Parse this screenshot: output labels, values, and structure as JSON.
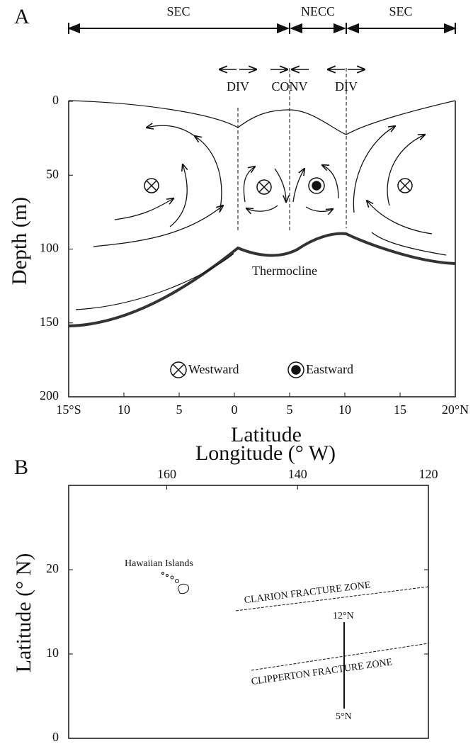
{
  "chart_data": [
    {
      "type": "section",
      "label": "A",
      "xlabel": "Latitude",
      "ylabel": "Depth (m)",
      "xlim": [
        -15,
        20
      ],
      "xticks": [
        {
          "value": -15,
          "label": "15°S"
        },
        {
          "value": -10,
          "label": "10"
        },
        {
          "value": -5,
          "label": "5"
        },
        0,
        5,
        10,
        15,
        {
          "value": 20,
          "label": "20°N"
        }
      ],
      "ylim": [
        200,
        0
      ],
      "yticks": [
        0,
        50,
        100,
        150,
        200
      ],
      "currents": [
        "SEC",
        "NECC",
        "SEC"
      ],
      "fronts": [
        "DIV",
        "CONV",
        "DIV"
      ],
      "annotation": "Thermocline",
      "legend": [
        "Westward",
        "Eastward"
      ]
    },
    {
      "type": "map",
      "label": "B",
      "xlabel": "Longitude (° W)",
      "ylabel": "Latitude (° N)",
      "xlim": [
        175,
        120
      ],
      "xticks": [
        160,
        140,
        120
      ],
      "ylim": [
        0,
        30
      ],
      "yticks": [
        0,
        10,
        20
      ],
      "annotations": [
        "Hawaiian Islands",
        "CLARION FRACTURE ZONE",
        "CLIPPERTON FRACTURE ZONE",
        "12°N",
        "5°N"
      ]
    }
  ]
}
